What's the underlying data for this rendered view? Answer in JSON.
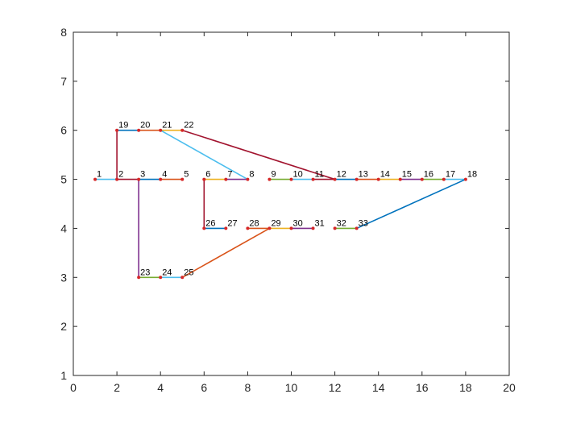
{
  "chart_data": {
    "type": "line",
    "title": "",
    "xlabel": "",
    "ylabel": "",
    "xlim": [
      0,
      20
    ],
    "ylim": [
      1,
      8
    ],
    "x_ticks": [
      "0",
      "2",
      "4",
      "6",
      "8",
      "10",
      "12",
      "14",
      "16",
      "18",
      "20"
    ],
    "y_ticks": [
      "1",
      "2",
      "3",
      "4",
      "5",
      "6",
      "7",
      "8"
    ],
    "grid": false,
    "legend": "none",
    "node_color": "#d62728",
    "nodes": [
      {
        "id": "1",
        "x": 1,
        "y": 5
      },
      {
        "id": "2",
        "x": 2,
        "y": 5
      },
      {
        "id": "3",
        "x": 3,
        "y": 5
      },
      {
        "id": "4",
        "x": 4,
        "y": 5
      },
      {
        "id": "5",
        "x": 5,
        "y": 5
      },
      {
        "id": "6",
        "x": 6,
        "y": 5
      },
      {
        "id": "7",
        "x": 7,
        "y": 5
      },
      {
        "id": "8",
        "x": 8,
        "y": 5
      },
      {
        "id": "9",
        "x": 9,
        "y": 5
      },
      {
        "id": "10",
        "x": 10,
        "y": 5
      },
      {
        "id": "11",
        "x": 11,
        "y": 5
      },
      {
        "id": "12",
        "x": 12,
        "y": 5
      },
      {
        "id": "13",
        "x": 13,
        "y": 5
      },
      {
        "id": "14",
        "x": 14,
        "y": 5
      },
      {
        "id": "15",
        "x": 15,
        "y": 5
      },
      {
        "id": "16",
        "x": 16,
        "y": 5
      },
      {
        "id": "17",
        "x": 17,
        "y": 5
      },
      {
        "id": "18",
        "x": 18,
        "y": 5
      },
      {
        "id": "19",
        "x": 2,
        "y": 6
      },
      {
        "id": "20",
        "x": 3,
        "y": 6
      },
      {
        "id": "21",
        "x": 4,
        "y": 6
      },
      {
        "id": "22",
        "x": 5,
        "y": 6
      },
      {
        "id": "23",
        "x": 3,
        "y": 3
      },
      {
        "id": "24",
        "x": 4,
        "y": 3
      },
      {
        "id": "25",
        "x": 5,
        "y": 3
      },
      {
        "id": "26",
        "x": 6,
        "y": 4
      },
      {
        "id": "27",
        "x": 7,
        "y": 4
      },
      {
        "id": "28",
        "x": 8,
        "y": 4
      },
      {
        "id": "29",
        "x": 9,
        "y": 4
      },
      {
        "id": "30",
        "x": 10,
        "y": 4
      },
      {
        "id": "31",
        "x": 11,
        "y": 4
      },
      {
        "id": "32",
        "x": 12,
        "y": 4
      },
      {
        "id": "33",
        "x": 13,
        "y": 4
      }
    ],
    "edges": [
      {
        "from": "1",
        "to": "2",
        "color": "#4dbeee"
      },
      {
        "from": "2",
        "to": "3",
        "color": "#a2142f"
      },
      {
        "from": "3",
        "to": "4",
        "color": "#0072bd"
      },
      {
        "from": "4",
        "to": "5",
        "color": "#d95319"
      },
      {
        "from": "6",
        "to": "7",
        "color": "#edb120"
      },
      {
        "from": "7",
        "to": "8",
        "color": "#7e2f8e"
      },
      {
        "from": "9",
        "to": "10",
        "color": "#77ac30"
      },
      {
        "from": "10",
        "to": "11",
        "color": "#4dbeee"
      },
      {
        "from": "11",
        "to": "12",
        "color": "#a2142f"
      },
      {
        "from": "12",
        "to": "13",
        "color": "#0072bd"
      },
      {
        "from": "13",
        "to": "14",
        "color": "#d95319"
      },
      {
        "from": "14",
        "to": "15",
        "color": "#edb120"
      },
      {
        "from": "15",
        "to": "16",
        "color": "#7e2f8e"
      },
      {
        "from": "16",
        "to": "17",
        "color": "#77ac30"
      },
      {
        "from": "17",
        "to": "18",
        "color": "#4dbeee"
      },
      {
        "from": "19",
        "to": "20",
        "color": "#0072bd"
      },
      {
        "from": "20",
        "to": "21",
        "color": "#d95319"
      },
      {
        "from": "21",
        "to": "22",
        "color": "#edb120"
      },
      {
        "from": "23",
        "to": "24",
        "color": "#77ac30"
      },
      {
        "from": "24",
        "to": "25",
        "color": "#4dbeee"
      },
      {
        "from": "26",
        "to": "27",
        "color": "#0072bd"
      },
      {
        "from": "28",
        "to": "29",
        "color": "#d95319"
      },
      {
        "from": "29",
        "to": "30",
        "color": "#edb120"
      },
      {
        "from": "30",
        "to": "31",
        "color": "#7e2f8e"
      },
      {
        "from": "32",
        "to": "33",
        "color": "#77ac30"
      },
      {
        "from": "2",
        "to": "19",
        "color": "#a2142f"
      },
      {
        "from": "3",
        "to": "23",
        "color": "#7e2f8e"
      },
      {
        "from": "6",
        "to": "26",
        "color": "#a2142f"
      },
      {
        "from": "21",
        "to": "8",
        "color": "#4dbeee"
      },
      {
        "from": "22",
        "to": "12",
        "color": "#a2142f"
      },
      {
        "from": "25",
        "to": "29",
        "color": "#d95319"
      },
      {
        "from": "33",
        "to": "18",
        "color": "#0072bd"
      }
    ]
  }
}
